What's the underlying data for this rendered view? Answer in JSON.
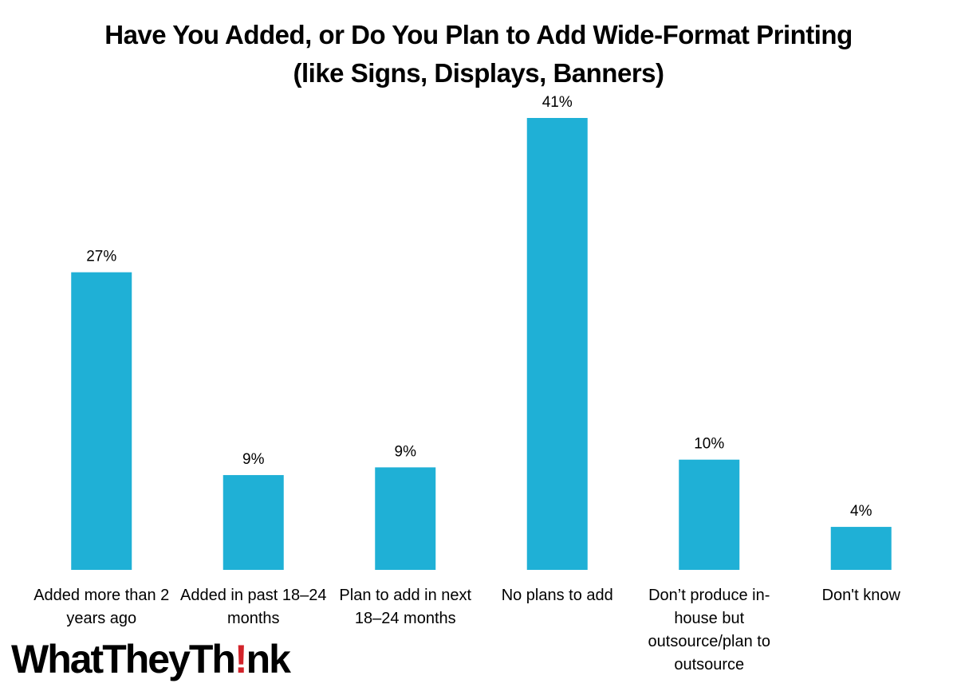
{
  "chart_data": {
    "type": "bar",
    "title": "Have You Added, or Do You Plan to Add Wide-Format Printing (like Signs, Displays, Banners)",
    "categories": [
      "Added more than 2 years ago",
      "Added in past 18–24 months",
      "Plan to add in next 18–24 months",
      "No plans to add",
      "Don’t produce in-house but outsource/plan to outsource",
      "Don't know"
    ],
    "values": [
      27,
      8.6,
      9.3,
      41,
      10,
      3.9
    ],
    "value_labels": [
      "27%",
      "9%",
      "9%",
      "41%",
      "10%",
      "4%"
    ],
    "color": "#1fb0d6"
  },
  "logo": [
    "WhatTheyTh",
    "!",
    "nk"
  ]
}
